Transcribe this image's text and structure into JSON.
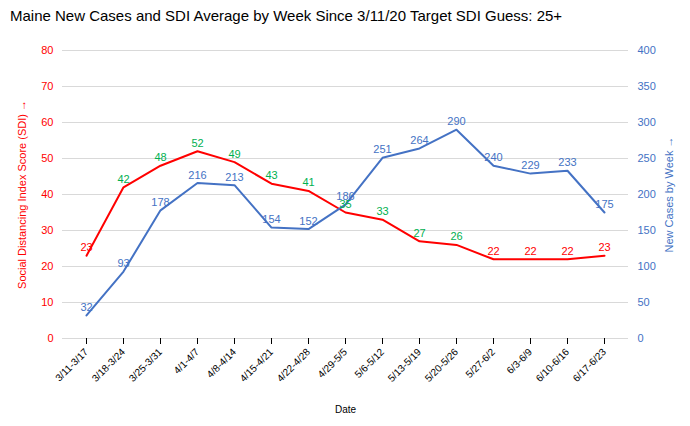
{
  "chart_data": {
    "type": "line",
    "title": "Maine New Cases and SDI Average by Week Since 3/11/20 Target SDI Guess: 25+",
    "xlabel": "Date",
    "ylabel": "Social Distancing Index Score (SDI)",
    "y2label": "New Cases by Week",
    "categories": [
      "3/11-3/17",
      "3/18-3/24",
      "3/25-3/31",
      "4/1-4/7",
      "4/8-4/14",
      "4/15-4/21",
      "4/22-4/28",
      "4/29-5/5",
      "5/6-5/12",
      "5/13-5/19",
      "5/20-5/26",
      "5/27-6/2",
      "6/3-6/9",
      "6/10-6/16",
      "6/17-6/23"
    ],
    "series": [
      {
        "name": "Social Distancing Index Score (SDI)",
        "color": "#ff0000",
        "colors": [
          "#ff0000",
          "#00b050",
          "#00b050",
          "#00b050",
          "#00b050",
          "#00b050",
          "#00b050",
          "#00b050",
          "#00b050",
          "#00b050",
          "#00b050",
          "#ff0000",
          "#ff0000",
          "#ff0000",
          "#ff0000"
        ],
        "values": [
          23,
          42,
          48,
          52,
          49,
          43,
          41,
          35,
          33,
          27,
          26,
          22,
          22,
          22,
          23
        ]
      },
      {
        "name": "New Cases by Week",
        "color": "#4472c4",
        "axis": "y2",
        "values": [
          32,
          93,
          178,
          216,
          213,
          154,
          152,
          186,
          251,
          264,
          290,
          240,
          229,
          233,
          175
        ]
      }
    ],
    "ylim": [
      0,
      80
    ],
    "yticks": [
      0,
      10,
      20,
      30,
      40,
      50,
      60,
      70,
      80
    ],
    "y2lim": [
      0,
      400
    ],
    "y2ticks": [
      0,
      50,
      100,
      150,
      200,
      250,
      300,
      350,
      400
    ],
    "grid": true,
    "data_labels": true
  }
}
